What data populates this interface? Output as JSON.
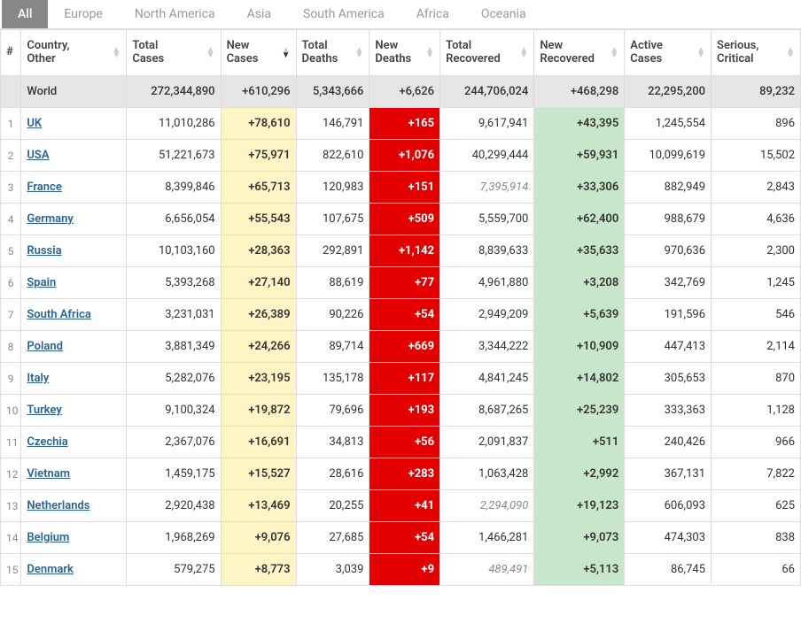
{
  "tabs": [
    "All",
    "Europe",
    "North America",
    "Asia",
    "South America",
    "Africa",
    "Oceania"
  ],
  "active_tab_index": 0,
  "columns": [
    {
      "key": "idx",
      "label": "#"
    },
    {
      "key": "country",
      "label": "Country, Other"
    },
    {
      "key": "total_cases",
      "label": "Total Cases"
    },
    {
      "key": "new_cases",
      "label": "New Cases",
      "sorted": "desc"
    },
    {
      "key": "total_deaths",
      "label": "Total Deaths"
    },
    {
      "key": "new_deaths",
      "label": "New Deaths"
    },
    {
      "key": "total_recovered",
      "label": "Total Recovered"
    },
    {
      "key": "new_recovered",
      "label": "New Recovered"
    },
    {
      "key": "active_cases",
      "label": "Active Cases"
    },
    {
      "key": "serious",
      "label": "Serious, Critical"
    }
  ],
  "world": {
    "country": "World",
    "total_cases": "272,344,890",
    "new_cases": "+610,296",
    "total_deaths": "5,343,666",
    "new_deaths": "+6,626",
    "total_recovered": "244,706,024",
    "new_recovered": "+468,298",
    "active_cases": "22,295,200",
    "serious": "89,232"
  },
  "rows": [
    {
      "idx": "1",
      "country": "UK",
      "total_cases": "11,010,286",
      "new_cases": "+78,610",
      "total_deaths": "146,791",
      "new_deaths": "+165",
      "total_recovered": "9,617,941",
      "total_recovered_muted": false,
      "new_recovered": "+43,395",
      "active_cases": "1,245,554",
      "serious": "896"
    },
    {
      "idx": "2",
      "country": "USA",
      "total_cases": "51,221,673",
      "new_cases": "+75,971",
      "total_deaths": "822,610",
      "new_deaths": "+1,076",
      "total_recovered": "40,299,444",
      "total_recovered_muted": false,
      "new_recovered": "+59,931",
      "active_cases": "10,099,619",
      "serious": "15,502"
    },
    {
      "idx": "3",
      "country": "France",
      "total_cases": "8,399,846",
      "new_cases": "+65,713",
      "total_deaths": "120,983",
      "new_deaths": "+151",
      "total_recovered": "7,395,914",
      "total_recovered_muted": true,
      "new_recovered": "+33,306",
      "active_cases": "882,949",
      "serious": "2,843"
    },
    {
      "idx": "4",
      "country": "Germany",
      "total_cases": "6,656,054",
      "new_cases": "+55,543",
      "total_deaths": "107,675",
      "new_deaths": "+509",
      "total_recovered": "5,559,700",
      "total_recovered_muted": false,
      "new_recovered": "+62,400",
      "active_cases": "988,679",
      "serious": "4,636"
    },
    {
      "idx": "5",
      "country": "Russia",
      "total_cases": "10,103,160",
      "new_cases": "+28,363",
      "total_deaths": "292,891",
      "new_deaths": "+1,142",
      "total_recovered": "8,839,633",
      "total_recovered_muted": false,
      "new_recovered": "+35,633",
      "active_cases": "970,636",
      "serious": "2,300"
    },
    {
      "idx": "6",
      "country": "Spain",
      "total_cases": "5,393,268",
      "new_cases": "+27,140",
      "total_deaths": "88,619",
      "new_deaths": "+77",
      "total_recovered": "4,961,880",
      "total_recovered_muted": false,
      "new_recovered": "+3,208",
      "active_cases": "342,769",
      "serious": "1,245"
    },
    {
      "idx": "7",
      "country": "South Africa",
      "total_cases": "3,231,031",
      "new_cases": "+26,389",
      "total_deaths": "90,226",
      "new_deaths": "+54",
      "total_recovered": "2,949,209",
      "total_recovered_muted": false,
      "new_recovered": "+5,639",
      "active_cases": "191,596",
      "serious": "546"
    },
    {
      "idx": "8",
      "country": "Poland",
      "total_cases": "3,881,349",
      "new_cases": "+24,266",
      "total_deaths": "89,714",
      "new_deaths": "+669",
      "total_recovered": "3,344,222",
      "total_recovered_muted": false,
      "new_recovered": "+10,909",
      "active_cases": "447,413",
      "serious": "2,114"
    },
    {
      "idx": "9",
      "country": "Italy",
      "total_cases": "5,282,076",
      "new_cases": "+23,195",
      "total_deaths": "135,178",
      "new_deaths": "+117",
      "total_recovered": "4,841,245",
      "total_recovered_muted": false,
      "new_recovered": "+14,802",
      "active_cases": "305,653",
      "serious": "870"
    },
    {
      "idx": "10",
      "country": "Turkey",
      "total_cases": "9,100,324",
      "new_cases": "+19,872",
      "total_deaths": "79,696",
      "new_deaths": "+193",
      "total_recovered": "8,687,265",
      "total_recovered_muted": false,
      "new_recovered": "+25,239",
      "active_cases": "333,363",
      "serious": "1,128"
    },
    {
      "idx": "11",
      "country": "Czechia",
      "total_cases": "2,367,076",
      "new_cases": "+16,691",
      "total_deaths": "34,813",
      "new_deaths": "+56",
      "total_recovered": "2,091,837",
      "total_recovered_muted": false,
      "new_recovered": "+511",
      "active_cases": "240,426",
      "serious": "966"
    },
    {
      "idx": "12",
      "country": "Vietnam",
      "total_cases": "1,459,175",
      "new_cases": "+15,527",
      "total_deaths": "28,616",
      "new_deaths": "+283",
      "total_recovered": "1,063,428",
      "total_recovered_muted": false,
      "new_recovered": "+2,992",
      "active_cases": "367,131",
      "serious": "7,822"
    },
    {
      "idx": "13",
      "country": "Netherlands",
      "total_cases": "2,920,438",
      "new_cases": "+13,469",
      "total_deaths": "20,255",
      "new_deaths": "+41",
      "total_recovered": "2,294,090",
      "total_recovered_muted": true,
      "new_recovered": "+19,123",
      "active_cases": "606,093",
      "serious": "625"
    },
    {
      "idx": "14",
      "country": "Belgium",
      "total_cases": "1,968,269",
      "new_cases": "+9,076",
      "total_deaths": "27,685",
      "new_deaths": "+54",
      "total_recovered": "1,466,281",
      "total_recovered_muted": false,
      "new_recovered": "+9,073",
      "active_cases": "474,303",
      "serious": "838"
    },
    {
      "idx": "15",
      "country": "Denmark",
      "total_cases": "579,275",
      "new_cases": "+8,773",
      "total_deaths": "3,039",
      "new_deaths": "+9",
      "total_recovered": "489,491",
      "total_recovered_muted": true,
      "new_recovered": "+5,113",
      "active_cases": "86,745",
      "serious": "66"
    }
  ],
  "style": {
    "highlight_yellow": "#fff4c6",
    "highlight_red": "#e30000",
    "highlight_green": "#c8e6c9",
    "link_color": "#2a6496",
    "border_color": "#dddddd",
    "world_row_bg": "#e6e6e6",
    "active_tab_bg": "#888888"
  }
}
